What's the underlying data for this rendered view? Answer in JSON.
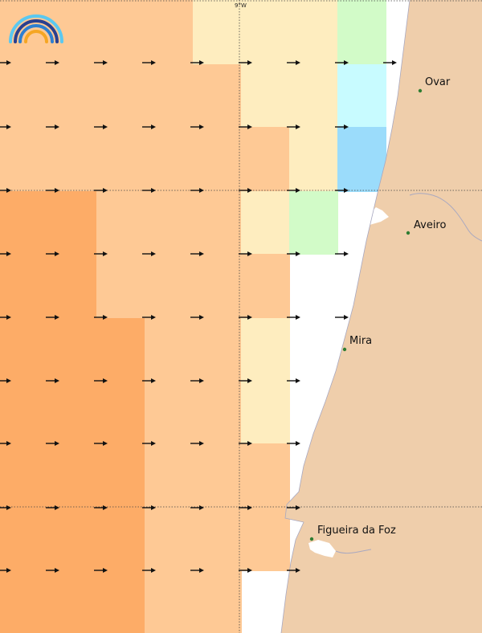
{
  "map": {
    "grid_label": "9°W",
    "colors": {
      "land": "#EFCEAB",
      "coast_line": "#A8A8C0",
      "arrow": "#111111",
      "town_dot": "#2E7D32",
      "cell_dark_orange": "#FDAC67",
      "cell_orange": "#FEC995",
      "cell_light_yellow": "#FEEDBF",
      "cell_light_green": "#D2FBC8",
      "cell_light_cyan": "#C8FBFF",
      "cell_light_blue": "#9BDCFB"
    },
    "logo_icon": "rainbow-arc-logo",
    "towns": [
      {
        "id": "ovar",
        "label": "Ovar"
      },
      {
        "id": "aveiro",
        "label": "Aveiro"
      },
      {
        "id": "mira",
        "label": "Mira"
      },
      {
        "id": "figueira",
        "label": "Figueira da Foz"
      }
    ]
  }
}
